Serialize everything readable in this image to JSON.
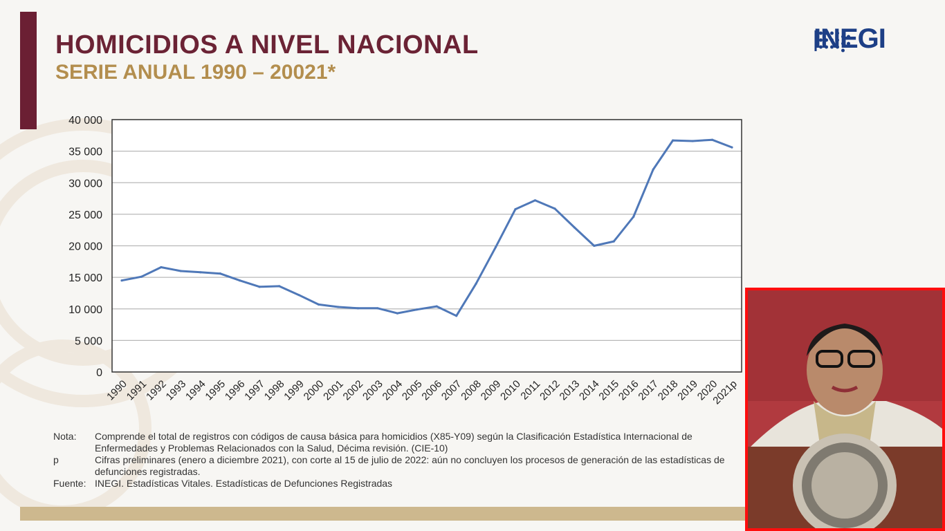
{
  "slide": {
    "title": "HOMICIDIOS A NIVEL NACIONAL",
    "subtitle": "SERIE ANUAL 1990 – 20021*",
    "logo_text": "INEGI",
    "colors": {
      "title": "#6b2335",
      "subtitle": "#b38e4e",
      "accent_bar": "#6b1f33",
      "line": "#4f78b8",
      "logo": "#1d3f86",
      "video_border": "#ff0d0d"
    }
  },
  "chart_data": {
    "type": "line",
    "title": "",
    "xlabel": "",
    "ylabel": "",
    "ylim": [
      0,
      40000
    ],
    "yticks": [
      0,
      5000,
      10000,
      15000,
      20000,
      25000,
      30000,
      35000,
      40000
    ],
    "ytick_labels": [
      "0",
      "5 000",
      "10 000",
      "15 000",
      "20 000",
      "25 000",
      "30 000",
      "35 000",
      "40 000"
    ],
    "grid": true,
    "categories": [
      "1990",
      "1991",
      "1992",
      "1993",
      "1994",
      "1995",
      "1996",
      "1997",
      "1998",
      "1999",
      "2000",
      "2001",
      "2002",
      "2003",
      "2004",
      "2005",
      "2006",
      "2007",
      "2008",
      "2009",
      "2010",
      "2011",
      "2012",
      "2013",
      "2014",
      "2015",
      "2016",
      "2017",
      "2018",
      "2019",
      "2020",
      "2021p"
    ],
    "series": [
      {
        "values": [
          14500,
          15100,
          16600,
          16000,
          15800,
          15600,
          14500,
          13500,
          13600,
          12200,
          10700,
          10300,
          10100,
          10100,
          9300,
          9900,
          10400,
          8900,
          14000,
          19800,
          25800,
          27200,
          25900,
          22900,
          20000,
          20700,
          24600,
          32100,
          36700,
          36600,
          36800,
          35600
        ]
      }
    ]
  },
  "notes": [
    {
      "label": "Nota:",
      "text": "Comprende el total de registros con códigos de causa básica para homicidios (X85-Y09) según la Clasificación Estadística Internacional de Enfermedades y Problemas Relacionados con la Salud, Décima revisión. (CIE-10)"
    },
    {
      "label": "p",
      "text": "Cifras preliminares (enero a diciembre 2021), con corte al 15 de julio de 2022: aún no concluyen los procesos de generación de las estadísticas de defunciones registradas."
    },
    {
      "label": "Fuente:",
      "text": "INEGI. Estadísticas Vitales. Estadísticas de Defunciones Registradas"
    }
  ]
}
